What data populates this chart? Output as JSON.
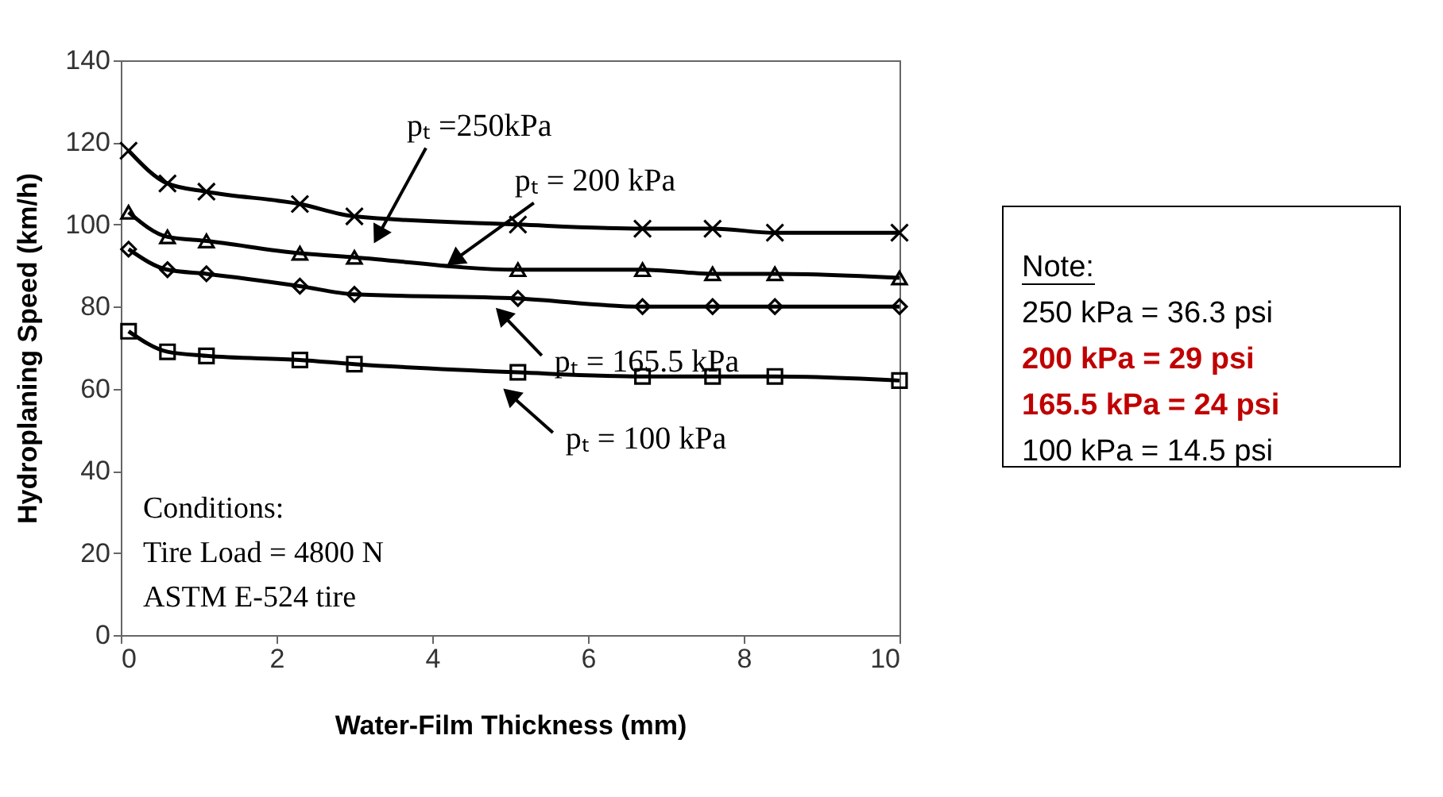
{
  "chart_data": {
    "type": "line",
    "xlabel": "Water-Film Thickness (mm)",
    "ylabel": "Hydroplaning Speed (km/h)",
    "x": [
      0.1,
      0.6,
      1.1,
      2.3,
      3.0,
      5.1,
      6.7,
      7.6,
      8.4,
      10
    ],
    "series": [
      {
        "name": "pₜ =250kPa",
        "color": "#000000",
        "marker": "cross",
        "values": [
          118,
          110,
          108,
          105,
          102,
          100,
          99,
          99,
          98,
          98
        ]
      },
      {
        "name": "pₜ = 200 kPa",
        "color": "#000000",
        "marker": "triangle",
        "values": [
          103,
          97,
          96,
          93,
          92,
          89,
          89,
          88,
          88,
          87
        ]
      },
      {
        "name": "pₜ = 165.5 kPa",
        "color": "#000000",
        "marker": "diamond",
        "values": [
          94,
          89,
          88,
          85,
          83,
          82,
          80,
          80,
          80,
          80
        ]
      },
      {
        "name": "pₜ = 100 kPa",
        "color": "#000000",
        "marker": "square",
        "values": [
          74,
          69,
          68,
          67,
          66,
          64,
          63,
          63,
          63,
          62
        ]
      }
    ],
    "xlim": [
      0,
      10
    ],
    "xticks": [
      0,
      2,
      4,
      6,
      8,
      10
    ],
    "ylim": [
      0,
      140
    ],
    "yticks": [
      0,
      20,
      40,
      60,
      80,
      100,
      120,
      140
    ],
    "grid": false,
    "line_style": "solid",
    "annotations": [
      "Conditions:",
      "Tire Load = 4800 N",
      "ASTM E-524 tire",
      "Note:",
      "250 kPa = 36.3 psi",
      "200 kPa = 29 psi",
      "165.5 kPa = 24 psi",
      "100 kPa = 14.5 psi"
    ]
  }
}
